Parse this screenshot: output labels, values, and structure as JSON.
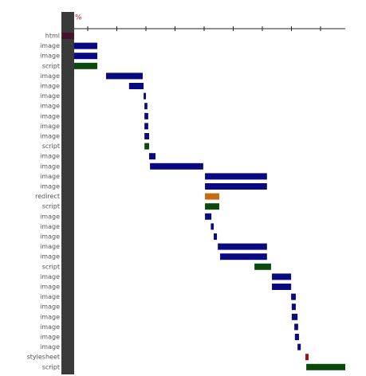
{
  "chart_data": {
    "type": "waterfall",
    "axis_label": "%",
    "categories": [
      "html",
      "image",
      "image",
      "script",
      "image",
      "image",
      "image",
      "image",
      "image",
      "image",
      "image",
      "script",
      "image",
      "image",
      "image",
      "image",
      "redirect",
      "script",
      "image",
      "image",
      "image",
      "image",
      "image",
      "script",
      "image",
      "image",
      "image",
      "image",
      "image",
      "image",
      "image",
      "image",
      "stylesheet",
      "script"
    ],
    "start": [
      0.12,
      0.53,
      0.53,
      0.53,
      1.63,
      2.42,
      2.92,
      2.95,
      2.95,
      2.95,
      2.95,
      2.95,
      3.11,
      3.14,
      5.03,
      5.03,
      5.03,
      5.03,
      5.03,
      5.23,
      5.33,
      5.47,
      5.55,
      6.73,
      7.33,
      7.33,
      7.99,
      8.01,
      8.01,
      8.1,
      8.12,
      8.21,
      8.48,
      8.51
    ],
    "end": [
      0.53,
      1.33,
      1.33,
      1.33,
      2.89,
      2.92,
      3.0,
      3.05,
      3.08,
      3.08,
      3.11,
      3.11,
      3.33,
      4.97,
      7.16,
      7.16,
      5.52,
      5.52,
      5.25,
      5.33,
      5.44,
      7.16,
      7.16,
      7.3,
      7.99,
      7.99,
      8.15,
      8.15,
      8.21,
      8.23,
      8.26,
      8.32,
      8.59,
      9.85
    ],
    "colors": [
      "#4a1030",
      "#0a0a80",
      "#0a0a80",
      "#0a4a0a",
      "#0a0a80",
      "#0a0a80",
      "#0a0a80",
      "#0a0a80",
      "#0a0a80",
      "#0a0a80",
      "#0a0a80",
      "#0a4a0a",
      "#0a0a80",
      "#0a0a80",
      "#0a0a80",
      "#0a0a80",
      "#c86a10",
      "#0a4a0a",
      "#0a0a80",
      "#0a0a80",
      "#0a0a80",
      "#0a0a80",
      "#0a0a80",
      "#0a4a0a",
      "#0a0a80",
      "#0a0a80",
      "#0a0a80",
      "#0a0a80",
      "#0a0a80",
      "#0a0a80",
      "#0a0a80",
      "#0a0a80",
      "#a01010",
      "#0a4a0a"
    ],
    "xlim": [
      0,
      9.85
    ],
    "xticks": [
      1,
      2,
      3,
      4,
      5,
      6,
      7,
      8,
      9
    ]
  }
}
